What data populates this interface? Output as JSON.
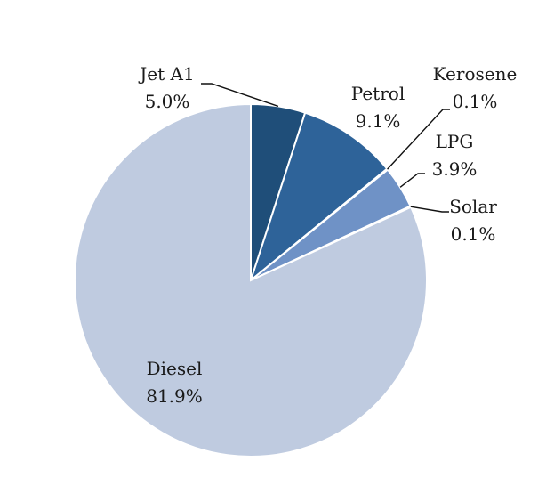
{
  "chart_data": {
    "type": "pie",
    "title": "",
    "start": "12 o'clock, clockwise",
    "slices": [
      {
        "name": "Jet A1",
        "value": 5.0,
        "label": "Jet A1",
        "pct": "5.0%",
        "color": "#1F4E79"
      },
      {
        "name": "Petrol",
        "value": 9.1,
        "label": "Petrol",
        "pct": "9.1%",
        "color": "#2E6399"
      },
      {
        "name": "Kerosene",
        "value": 0.1,
        "label": "Kerosene",
        "pct": "0.1%",
        "color": "#4A7BB7"
      },
      {
        "name": "LPG",
        "value": 3.9,
        "label": "LPG",
        "pct": "3.9%",
        "color": "#6F92C6"
      },
      {
        "name": "Solar",
        "value": 0.1,
        "label": "Solar",
        "pct": "0.1%",
        "color": "#8FA9D3"
      },
      {
        "name": "Diesel",
        "value": 81.9,
        "label": "Diesel",
        "pct": "81.9%",
        "color": "#BFCBE0"
      }
    ],
    "legend": "none"
  }
}
